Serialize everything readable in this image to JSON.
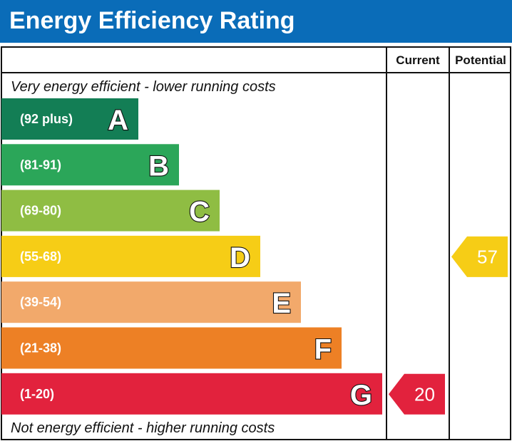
{
  "title": "Energy Efficiency Rating",
  "columns": {
    "current": "Current",
    "potential": "Potential"
  },
  "top_note": "Very energy efficient - lower running costs",
  "bottom_note": "Not energy efficient - higher running costs",
  "chart_data": {
    "type": "bar",
    "title": "Energy Efficiency Rating",
    "bands": [
      {
        "letter": "A",
        "range": "(92 plus)",
        "color": "#137e55"
      },
      {
        "letter": "B",
        "range": "(81-91)",
        "color": "#2ba659"
      },
      {
        "letter": "C",
        "range": "(69-80)",
        "color": "#8fbd43"
      },
      {
        "letter": "D",
        "range": "(55-68)",
        "color": "#f6cd16"
      },
      {
        "letter": "E",
        "range": "(39-54)",
        "color": "#f2a96b"
      },
      {
        "letter": "F",
        "range": "(21-38)",
        "color": "#ed8025"
      },
      {
        "letter": "G",
        "range": "(1-20)",
        "color": "#e2223d"
      }
    ],
    "current": {
      "value": 20,
      "band": "G",
      "color": "#e2223d"
    },
    "potential": {
      "value": 57,
      "band": "D",
      "color": "#f6cd16"
    }
  }
}
